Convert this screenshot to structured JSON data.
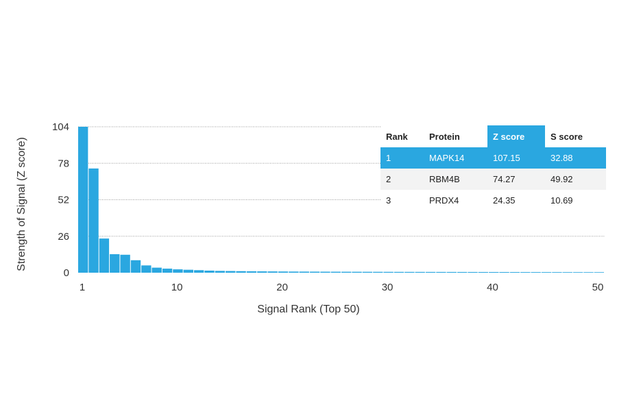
{
  "chart_data": {
    "type": "bar",
    "xlabel": "Signal Rank (Top 50)",
    "ylabel": "Strength of Signal (Z score)",
    "ylim": [
      0,
      104
    ],
    "yticks": [
      0,
      26,
      52,
      78,
      104
    ],
    "xticks": [
      1,
      10,
      20,
      30,
      40,
      50
    ],
    "xlim": [
      1,
      50
    ],
    "grid": "horizontal dotted",
    "bar_color": "#2aa7e0",
    "x": [
      1,
      2,
      3,
      4,
      5,
      6,
      7,
      8,
      9,
      10,
      11,
      12,
      13,
      14,
      15,
      16,
      17,
      18,
      19,
      20,
      21,
      22,
      23,
      24,
      25,
      26,
      27,
      28,
      29,
      30,
      31,
      32,
      33,
      34,
      35,
      36,
      37,
      38,
      39,
      40,
      41,
      42,
      43,
      44,
      45,
      46,
      47,
      48,
      49,
      50
    ],
    "values": [
      107.15,
      74.27,
      24.35,
      13.2,
      12.8,
      8.9,
      5.2,
      3.6,
      2.9,
      2.4,
      2.1,
      1.8,
      1.5,
      1.3,
      1.2,
      1.1,
      1.0,
      0.95,
      0.9,
      0.85,
      0.8,
      0.78,
      0.75,
      0.72,
      0.7,
      0.68,
      0.66,
      0.64,
      0.62,
      0.6,
      0.58,
      0.57,
      0.56,
      0.55,
      0.54,
      0.53,
      0.52,
      0.51,
      0.5,
      0.49,
      0.48,
      0.47,
      0.46,
      0.45,
      0.44,
      0.43,
      0.42,
      0.41,
      0.4,
      0.39
    ]
  },
  "table": {
    "headers": [
      "Rank",
      "Protein",
      "Z score",
      "S score"
    ],
    "highlight_color": "#2aa7e0",
    "rows": [
      [
        "1",
        "MAPK14",
        "107.15",
        "32.88"
      ],
      [
        "2",
        "RBM4B",
        "74.27",
        "49.92"
      ],
      [
        "3",
        "PRDX4",
        "24.35",
        "10.69"
      ]
    ]
  }
}
